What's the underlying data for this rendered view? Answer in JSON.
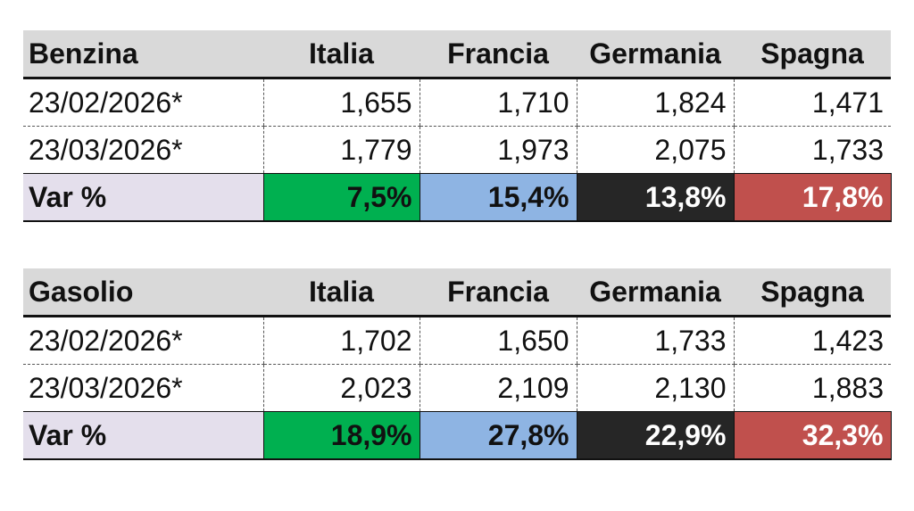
{
  "colors": {
    "header_bg": "#d9d9d9",
    "var_label_bg": "#e4dfec",
    "italia": "#00b050",
    "francia": "#8eb4e3",
    "germania": "#262626",
    "spagna": "#c0504d"
  },
  "tables": [
    {
      "title": "Benzina",
      "countries": [
        "Italia",
        "Francia",
        "Germania",
        "Spagna"
      ],
      "rows": [
        {
          "date": "23/02/2026*",
          "values": [
            "1,655",
            "1,710",
            "1,824",
            "1,471"
          ]
        },
        {
          "date": "23/03/2026*",
          "values": [
            "1,779",
            "1,973",
            "2,075",
            "1,733"
          ]
        }
      ],
      "var_label": "Var %",
      "var_values": [
        "7,5%",
        "15,4%",
        "13,8%",
        "17,8%"
      ]
    },
    {
      "title": "Gasolio",
      "countries": [
        "Italia",
        "Francia",
        "Germania",
        "Spagna"
      ],
      "rows": [
        {
          "date": "23/02/2026*",
          "values": [
            "1,702",
            "1,650",
            "1,733",
            "1,423"
          ]
        },
        {
          "date": "23/03/2026*",
          "values": [
            "2,023",
            "2,109",
            "2,130",
            "1,883"
          ]
        }
      ],
      "var_label": "Var %",
      "var_values": [
        "18,9%",
        "27,8%",
        "22,9%",
        "32,3%"
      ]
    }
  ]
}
